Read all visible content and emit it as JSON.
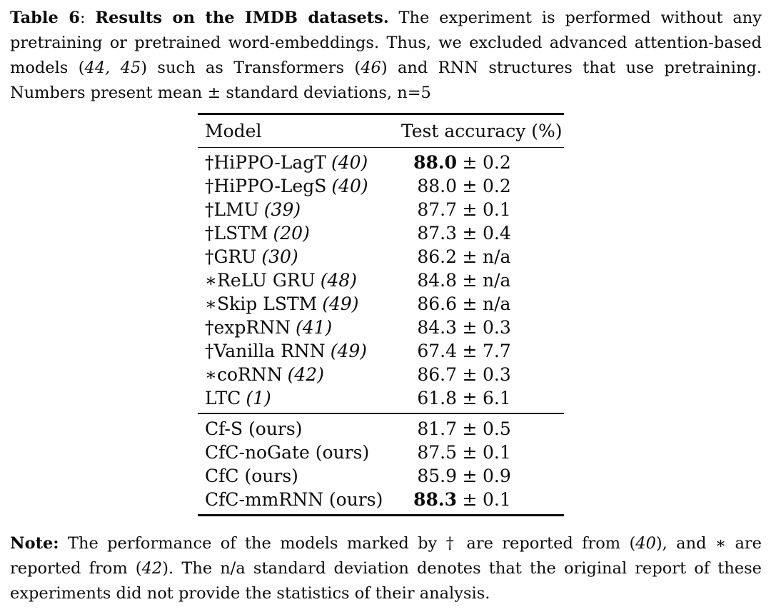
{
  "page": {
    "background_color": "#ffffff",
    "text_color": "#0b0b0b"
  },
  "caption": {
    "segments": [
      {
        "text": "Table 6",
        "style": "bold"
      },
      {
        "text": ": ",
        "style": "regular"
      },
      {
        "text": "Results on the IMDB datasets.",
        "style": "bold"
      },
      {
        "text": " The experiment is performed without any pretraining or pretrained word-embeddings. Thus, we excluded advanced attention-based models (",
        "style": "regular"
      },
      {
        "text": "44, 45",
        "style": "italic"
      },
      {
        "text": ") such as Transformers (",
        "style": "regular"
      },
      {
        "text": "46",
        "style": "italic"
      },
      {
        "text": ") and RNN structures that use pretraining. Numbers present mean ± standard deviations, n=5",
        "style": "regular"
      }
    ]
  },
  "table": {
    "columns": [
      "Model",
      "Test accuracy (%)"
    ],
    "plus_minus": "±",
    "groups": [
      {
        "rows": [
          {
            "marker": "†",
            "name": "HiPPO-LagT",
            "ref": "(40)",
            "mean": "88.0",
            "std": "0.2",
            "mean_bold": true
          },
          {
            "marker": "†",
            "name": "HiPPO-LegS",
            "ref": "(40)",
            "mean": "88.0",
            "std": "0.2",
            "mean_bold": false
          },
          {
            "marker": "†",
            "name": "LMU",
            "ref": "(39)",
            "mean": "87.7",
            "std": "0.1",
            "mean_bold": false
          },
          {
            "marker": "†",
            "name": "LSTM",
            "ref": "(20)",
            "mean": "87.3",
            "std": "0.4",
            "mean_bold": false
          },
          {
            "marker": "†",
            "name": "GRU",
            "ref": "(30)",
            "mean": "86.2",
            "std": "n/a",
            "mean_bold": false
          },
          {
            "marker": "∗",
            "name": "ReLU GRU",
            "ref": "(48)",
            "mean": "84.8",
            "std": "n/a",
            "mean_bold": false
          },
          {
            "marker": "∗",
            "name": "Skip LSTM",
            "ref": "(49)",
            "mean": "86.6",
            "std": "n/a",
            "mean_bold": false
          },
          {
            "marker": "†",
            "name": "expRNN",
            "ref": "(41)",
            "mean": "84.3",
            "std": "0.3",
            "mean_bold": false
          },
          {
            "marker": "†",
            "name": "Vanilla RNN",
            "ref": "(49)",
            "mean": "67.4",
            "std": "7.7",
            "mean_bold": false
          },
          {
            "marker": "∗",
            "name": "coRNN",
            "ref": "(42)",
            "mean": "86.7",
            "std": "0.3",
            "mean_bold": false
          },
          {
            "marker": "",
            "name": "LTC",
            "ref": "(1)",
            "mean": "61.8",
            "std": "6.1",
            "mean_bold": false
          }
        ]
      },
      {
        "rows": [
          {
            "marker": "",
            "name": "Cf-S (ours)",
            "ref": "",
            "mean": "81.7",
            "std": "0.5",
            "mean_bold": false
          },
          {
            "marker": "",
            "name": "CfC-noGate (ours)",
            "ref": "",
            "mean": "87.5",
            "std": "0.1",
            "mean_bold": false
          },
          {
            "marker": "",
            "name": "CfC (ours)",
            "ref": "",
            "mean": "85.9",
            "std": "0.9",
            "mean_bold": false
          },
          {
            "marker": "",
            "name": "CfC-mmRNN (ours)",
            "ref": "",
            "mean": "88.3",
            "std": "0.1",
            "mean_bold": true
          }
        ]
      }
    ]
  },
  "note": {
    "segments": [
      {
        "text": "Note:",
        "style": "bold"
      },
      {
        "text": " The performance of the models marked by † are reported from (",
        "style": "regular"
      },
      {
        "text": "40",
        "style": "italic"
      },
      {
        "text": "), and ∗ are reported from (",
        "style": "regular"
      },
      {
        "text": "42",
        "style": "italic"
      },
      {
        "text": "). The n/a standard deviation denotes that the original report of these experiments did not provide the statistics of their analysis.",
        "style": "regular"
      }
    ]
  }
}
